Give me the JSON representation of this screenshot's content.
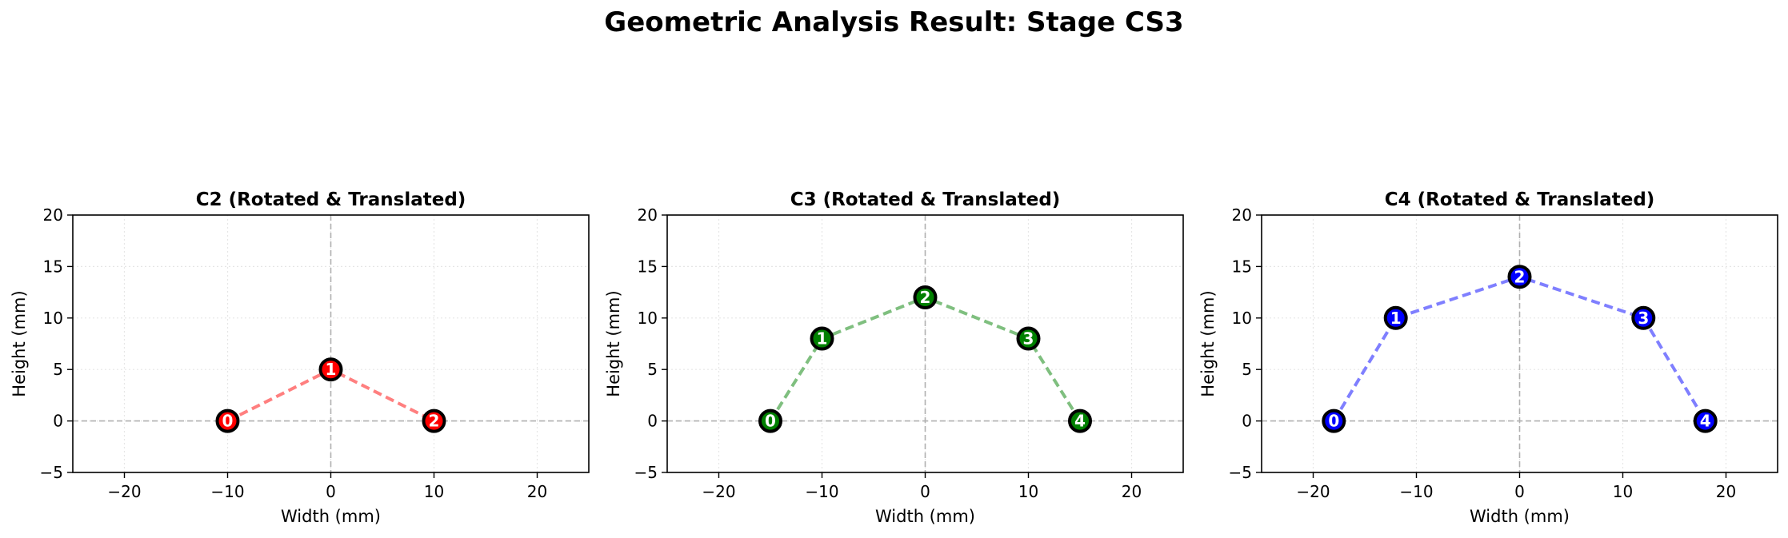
{
  "suptitle": "Geometric Analysis Result: Stage CS3",
  "chart_data": [
    {
      "type": "line",
      "title": "C2 (Rotated & Translated)",
      "xlabel": "Width (mm)",
      "ylabel": "Height (mm)",
      "xlim": [
        -25,
        25
      ],
      "ylim": [
        -5,
        20
      ],
      "xticks": [
        -20,
        -10,
        0,
        10,
        20
      ],
      "yticks": [
        -5,
        0,
        5,
        10,
        15,
        20
      ],
      "grid": true,
      "line_style": "dashed",
      "line_color": "#ff7f7f",
      "marker_color": "#ff0000",
      "points": [
        {
          "label": "0",
          "x": -10,
          "y": 0
        },
        {
          "label": "1",
          "x": 0,
          "y": 5
        },
        {
          "label": "2",
          "x": 10,
          "y": 0
        }
      ]
    },
    {
      "type": "line",
      "title": "C3 (Rotated & Translated)",
      "xlabel": "Width (mm)",
      "ylabel": "Height (mm)",
      "xlim": [
        -25,
        25
      ],
      "ylim": [
        -5,
        20
      ],
      "xticks": [
        -20,
        -10,
        0,
        10,
        20
      ],
      "yticks": [
        -5,
        0,
        5,
        10,
        15,
        20
      ],
      "grid": true,
      "line_style": "dashed",
      "line_color": "#7fbf7f",
      "marker_color": "#008000",
      "points": [
        {
          "label": "0",
          "x": -15,
          "y": 0
        },
        {
          "label": "1",
          "x": -10,
          "y": 8
        },
        {
          "label": "2",
          "x": 0,
          "y": 12
        },
        {
          "label": "3",
          "x": 10,
          "y": 8
        },
        {
          "label": "4",
          "x": 15,
          "y": 0
        }
      ]
    },
    {
      "type": "line",
      "title": "C4 (Rotated & Translated)",
      "xlabel": "Width (mm)",
      "ylabel": "Height (mm)",
      "xlim": [
        -25,
        25
      ],
      "ylim": [
        -5,
        20
      ],
      "xticks": [
        -20,
        -10,
        0,
        10,
        20
      ],
      "yticks": [
        -5,
        0,
        5,
        10,
        15,
        20
      ],
      "grid": true,
      "line_style": "dashed",
      "line_color": "#7f7fff",
      "marker_color": "#0000ff",
      "points": [
        {
          "label": "0",
          "x": -18,
          "y": 0
        },
        {
          "label": "1",
          "x": -12,
          "y": 10
        },
        {
          "label": "2",
          "x": 0,
          "y": 14
        },
        {
          "label": "3",
          "x": 12,
          "y": 10
        },
        {
          "label": "4",
          "x": 18,
          "y": 0
        }
      ]
    }
  ]
}
